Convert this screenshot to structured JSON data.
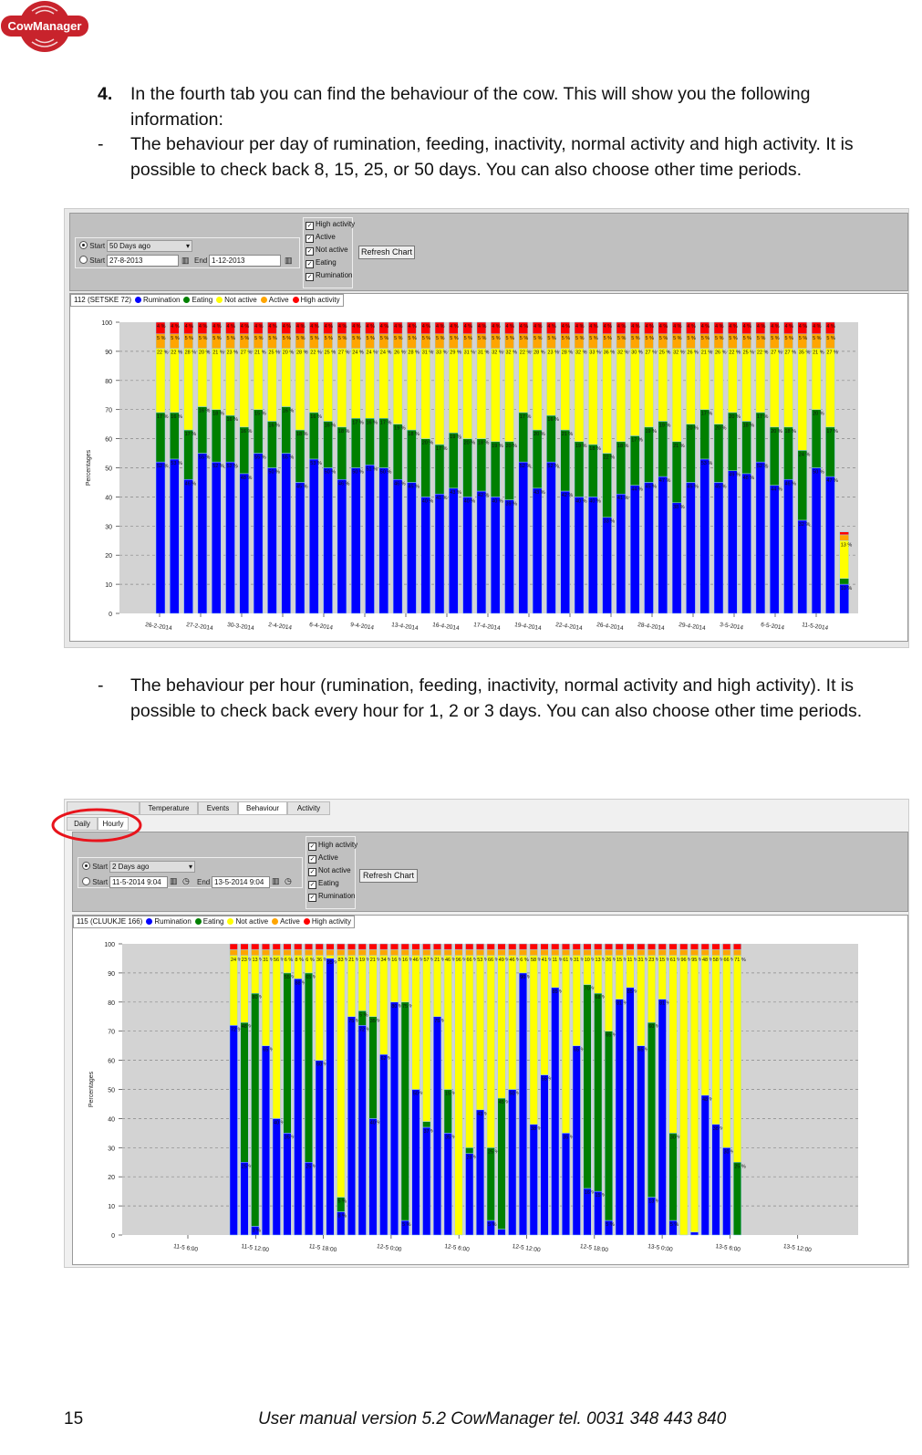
{
  "logo": {
    "text": "CowManager",
    "color": "#c8232c"
  },
  "intro": {
    "number": "4.",
    "text": "In the fourth tab you can find the behaviour of the cow. This will show you the following information:",
    "bullet1": "The behaviour per day of rumination, feeding, inactivity, normal activity and high activity. It is possible to check back 8, 15, 25, or 50 days. You can also choose other time periods.",
    "bullet2": "The behaviour per hour (rumination, feeding, inactivity, normal activity and high activity). It is possible to check back every hour for 1, 2 or 3 days. You can also choose other time periods.",
    "dash": "-"
  },
  "colors": {
    "rumination": "#0000ff",
    "eating": "#008000",
    "not_active": "#ffff00",
    "active": "#ffa500",
    "high_activity": "#ff0000",
    "plot_bg": "#d3d3d3",
    "circle": "#e8141c"
  },
  "screenshot1": {
    "start_label": "Start",
    "preset": "50 Days ago",
    "start_value": "27-8-2013",
    "end_label": "End",
    "end_value": "1-12-2013",
    "checks": [
      "High activity",
      "Active",
      "Not active",
      "Eating",
      "Rumination"
    ],
    "refresh": "Refresh Chart",
    "legend_title": "112 (SETSKE 72)",
    "legend": [
      "Rumination",
      "Eating",
      "Not active",
      "Active",
      "High activity"
    ]
  },
  "screenshot2": {
    "tabs": [
      "",
      "Temperature",
      "Events",
      "Behaviour",
      "Activity"
    ],
    "subtabs": [
      "Daily",
      "Hourly"
    ],
    "start_label": "Start",
    "preset": "2 Days ago",
    "start_value": "11-5-2014 9:04",
    "end_label": "End",
    "end_value": "13-5-2014 9:04",
    "checks": [
      "High activity",
      "Active",
      "Not active",
      "Eating",
      "Rumination"
    ],
    "refresh": "Refresh Chart",
    "legend_title": "115 (CLUUKJE 166)",
    "legend": [
      "Rumination",
      "Eating",
      "Not active",
      "Active",
      "High activity"
    ]
  },
  "chart_data": [
    {
      "type": "bar",
      "stacked": true,
      "ylabel": "Percentages",
      "ylim": [
        0,
        100
      ],
      "yticks": [
        0,
        10,
        20,
        30,
        40,
        50,
        60,
        70,
        80,
        90,
        100
      ],
      "grid": true,
      "xticks": [
        "26-2-2014",
        "27-2-2014",
        "30-3-2014",
        "2-4-2014",
        "6-4-2014",
        "9-4-2014",
        "13-4-2014",
        "16-4-2014",
        "17-4-2014",
        "19-4-2014",
        "22-4-2014",
        "26-4-2014",
        "28-4-2014",
        "29-4-2014",
        "3-5-2014",
        "6-5-2014",
        "11-5-2014"
      ],
      "series": [
        {
          "name": "Rumination",
          "values": [
            52,
            53,
            46,
            55,
            52,
            52,
            48,
            55,
            50,
            55,
            45,
            53,
            50,
            46,
            50,
            51,
            50,
            46,
            45,
            40,
            41,
            43,
            40,
            42,
            40,
            39,
            52,
            43,
            52,
            42,
            40,
            40,
            33,
            41,
            44,
            45,
            47,
            38,
            45,
            53,
            45,
            49,
            48,
            52,
            44,
            46,
            32,
            50,
            47,
            10
          ]
        },
        {
          "name": "Eating",
          "values": [
            17,
            16,
            17,
            16,
            18,
            16,
            16,
            15,
            16,
            16,
            18,
            16,
            16,
            18,
            17,
            16,
            17,
            19,
            18,
            20,
            17,
            19,
            20,
            18,
            19,
            20,
            17,
            20,
            16,
            21,
            19,
            18,
            22,
            18,
            17,
            19,
            19,
            21,
            20,
            17,
            20,
            20,
            18,
            17,
            20,
            18,
            24,
            20,
            17,
            2
          ]
        },
        {
          "name": "Not active",
          "values": [
            22,
            22,
            28,
            20,
            21,
            23,
            27,
            21,
            25,
            20,
            28,
            22,
            25,
            27,
            24,
            24,
            24,
            26,
            28,
            31,
            33,
            29,
            31,
            31,
            32,
            32,
            22,
            28,
            23,
            28,
            32,
            33,
            36,
            32,
            30,
            27,
            25,
            32,
            26,
            21,
            26,
            22,
            25,
            22,
            27,
            27,
            35,
            21,
            27,
            13
          ]
        },
        {
          "name": "Active",
          "values": [
            5,
            5,
            5,
            5,
            5,
            5,
            5,
            5,
            5,
            5,
            5,
            5,
            5,
            5,
            5,
            5,
            5,
            5,
            5,
            5,
            5,
            5,
            5,
            5,
            5,
            5,
            5,
            5,
            5,
            5,
            5,
            5,
            5,
            5,
            5,
            5,
            5,
            5,
            5,
            5,
            5,
            5,
            5,
            5,
            5,
            5,
            5,
            5,
            5,
            2
          ]
        },
        {
          "name": "High activity",
          "values": [
            4,
            4,
            4,
            4,
            4,
            4,
            4,
            4,
            4,
            4,
            4,
            4,
            4,
            4,
            4,
            4,
            4,
            4,
            4,
            4,
            4,
            4,
            4,
            4,
            4,
            4,
            4,
            4,
            4,
            4,
            4,
            4,
            4,
            4,
            4,
            4,
            4,
            4,
            4,
            4,
            4,
            4,
            4,
            4,
            4,
            4,
            4,
            4,
            4,
            1
          ]
        }
      ]
    },
    {
      "type": "bar",
      "stacked": true,
      "ylabel": "Percentages",
      "ylim": [
        0,
        100
      ],
      "yticks": [
        0,
        10,
        20,
        30,
        40,
        50,
        60,
        70,
        80,
        90,
        100
      ],
      "grid": true,
      "xticks": [
        "11-5 6:00",
        "11-5 12:00",
        "11-5 18:00",
        "12-5 0:00",
        "12-5 6:00",
        "12-5 12:00",
        "12-5 18:00",
        "13-5 0:00",
        "13-5 6:00",
        "13-5 12:00"
      ],
      "series": [
        {
          "name": "Rumination",
          "values": [
            72,
            25,
            3,
            65,
            40,
            35,
            88,
            25,
            60,
            95,
            8,
            75,
            72,
            40,
            62,
            80,
            5,
            50,
            37,
            75,
            35,
            0,
            28,
            43,
            5,
            2,
            50,
            90,
            38,
            55,
            85,
            35,
            65,
            16,
            15,
            5,
            81,
            85,
            65,
            13,
            81,
            5,
            0,
            1,
            48,
            38,
            30,
            0
          ]
        },
        {
          "name": "Eating",
          "values": [
            0,
            48,
            80,
            0,
            0,
            55,
            0,
            65,
            0,
            0,
            5,
            0,
            5,
            35,
            0,
            0,
            75,
            0,
            2,
            0,
            15,
            0,
            2,
            0,
            25,
            45,
            0,
            0,
            0,
            0,
            0,
            0,
            0,
            70,
            68,
            65,
            0,
            0,
            0,
            60,
            0,
            30,
            0,
            0,
            0,
            0,
            0,
            25
          ]
        },
        {
          "name": "Not active",
          "values": [
            24,
            23,
            13,
            31,
            56,
            6,
            8,
            6,
            36,
            1,
            83,
            21,
            19,
            21,
            34,
            16,
            16,
            46,
            57,
            21,
            46,
            96,
            66,
            53,
            66,
            49,
            46,
            6,
            58,
            41,
            11,
            61,
            31,
            10,
            13,
            26,
            15,
            11,
            31,
            23,
            15,
            61,
            96,
            95,
            48,
            58,
            66,
            71
          ]
        },
        {
          "name": "Active",
          "values": [
            2,
            2,
            2,
            2,
            2,
            2,
            2,
            2,
            2,
            2,
            2,
            2,
            2,
            2,
            2,
            2,
            2,
            2,
            2,
            2,
            2,
            2,
            2,
            2,
            2,
            2,
            2,
            2,
            2,
            2,
            2,
            2,
            2,
            2,
            2,
            2,
            2,
            2,
            2,
            2,
            2,
            2,
            2,
            2,
            2,
            2,
            2,
            2
          ]
        },
        {
          "name": "High activity",
          "values": [
            2,
            2,
            2,
            2,
            2,
            2,
            2,
            2,
            2,
            2,
            2,
            2,
            2,
            2,
            2,
            2,
            2,
            2,
            2,
            2,
            2,
            2,
            2,
            2,
            2,
            2,
            2,
            2,
            2,
            2,
            2,
            2,
            2,
            2,
            2,
            2,
            2,
            2,
            2,
            2,
            2,
            2,
            2,
            2,
            2,
            2,
            2,
            2
          ]
        }
      ]
    }
  ],
  "footer": {
    "page": "15",
    "text": "User manual version 5.2 CowManager tel. 0031 348 443 840"
  }
}
